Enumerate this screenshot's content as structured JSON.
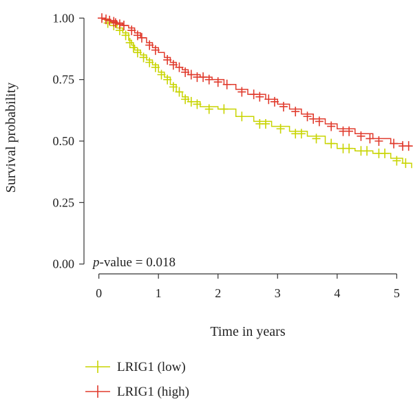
{
  "chart_data": {
    "type": "line",
    "step": true,
    "xlabel": "Time in years",
    "ylabel": "Survival probability",
    "xlim": [
      -0.25,
      5.25
    ],
    "ylim": [
      -0.04,
      1.04
    ],
    "xticks": [
      0,
      1,
      2,
      3,
      4,
      5
    ],
    "yticks": [
      0.0,
      0.25,
      0.5,
      0.75,
      1.0
    ],
    "ytick_labels": [
      "0.00",
      "0.25",
      "0.50",
      "0.75",
      "1.00"
    ],
    "annotation": {
      "italic": "p",
      "rest": "-value = 0.018"
    },
    "grid": false,
    "legend_position": "bottom-left",
    "series": [
      {
        "name": "LRIG1 (low)",
        "color": "#c8d400",
        "points": [
          [
            0,
            1.0
          ],
          [
            0.1,
            0.99
          ],
          [
            0.2,
            0.98
          ],
          [
            0.3,
            0.96
          ],
          [
            0.4,
            0.94
          ],
          [
            0.5,
            0.91
          ],
          [
            0.55,
            0.89
          ],
          [
            0.6,
            0.87
          ],
          [
            0.7,
            0.85
          ],
          [
            0.8,
            0.83
          ],
          [
            0.9,
            0.81
          ],
          [
            1.0,
            0.78
          ],
          [
            1.1,
            0.76
          ],
          [
            1.2,
            0.73
          ],
          [
            1.3,
            0.7
          ],
          [
            1.4,
            0.68
          ],
          [
            1.5,
            0.66
          ],
          [
            1.7,
            0.64
          ],
          [
            2.0,
            0.63
          ],
          [
            2.3,
            0.6
          ],
          [
            2.6,
            0.58
          ],
          [
            2.9,
            0.56
          ],
          [
            3.2,
            0.54
          ],
          [
            3.5,
            0.52
          ],
          [
            3.8,
            0.49
          ],
          [
            4.0,
            0.47
          ],
          [
            4.3,
            0.46
          ],
          [
            4.6,
            0.45
          ],
          [
            4.9,
            0.43
          ],
          [
            5.1,
            0.41
          ],
          [
            5.25,
            0.39
          ]
        ],
        "censors": [
          [
            0.15,
            0.98
          ],
          [
            0.25,
            0.97
          ],
          [
            0.35,
            0.95
          ],
          [
            0.45,
            0.93
          ],
          [
            0.52,
            0.9
          ],
          [
            0.58,
            0.88
          ],
          [
            0.65,
            0.86
          ],
          [
            0.75,
            0.84
          ],
          [
            0.85,
            0.82
          ],
          [
            0.95,
            0.8
          ],
          [
            1.05,
            0.77
          ],
          [
            1.15,
            0.75
          ],
          [
            1.25,
            0.72
          ],
          [
            1.35,
            0.7
          ],
          [
            1.45,
            0.67
          ],
          [
            1.55,
            0.66
          ],
          [
            1.65,
            0.65
          ],
          [
            1.85,
            0.63
          ],
          [
            2.1,
            0.63
          ],
          [
            2.4,
            0.6
          ],
          [
            2.7,
            0.57
          ],
          [
            2.8,
            0.57
          ],
          [
            3.05,
            0.55
          ],
          [
            3.3,
            0.53
          ],
          [
            3.4,
            0.53
          ],
          [
            3.65,
            0.51
          ],
          [
            3.9,
            0.49
          ],
          [
            4.1,
            0.47
          ],
          [
            4.2,
            0.47
          ],
          [
            4.4,
            0.46
          ],
          [
            4.5,
            0.46
          ],
          [
            4.7,
            0.45
          ],
          [
            4.8,
            0.45
          ],
          [
            5.0,
            0.42
          ],
          [
            5.15,
            0.41
          ]
        ]
      },
      {
        "name": "LRIG1 (high)",
        "color": "#e03a2c",
        "points": [
          [
            0,
            1.0
          ],
          [
            0.1,
            0.995
          ],
          [
            0.2,
            0.99
          ],
          [
            0.3,
            0.98
          ],
          [
            0.4,
            0.97
          ],
          [
            0.5,
            0.96
          ],
          [
            0.6,
            0.94
          ],
          [
            0.7,
            0.92
          ],
          [
            0.8,
            0.9
          ],
          [
            0.9,
            0.88
          ],
          [
            1.0,
            0.86
          ],
          [
            1.1,
            0.84
          ],
          [
            1.2,
            0.82
          ],
          [
            1.3,
            0.8
          ],
          [
            1.4,
            0.79
          ],
          [
            1.5,
            0.77
          ],
          [
            1.7,
            0.76
          ],
          [
            1.9,
            0.75
          ],
          [
            2.1,
            0.73
          ],
          [
            2.3,
            0.71
          ],
          [
            2.5,
            0.69
          ],
          [
            2.8,
            0.67
          ],
          [
            3.0,
            0.65
          ],
          [
            3.2,
            0.63
          ],
          [
            3.4,
            0.61
          ],
          [
            3.6,
            0.59
          ],
          [
            3.8,
            0.57
          ],
          [
            4.0,
            0.55
          ],
          [
            4.3,
            0.53
          ],
          [
            4.6,
            0.51
          ],
          [
            4.9,
            0.49
          ],
          [
            5.1,
            0.48
          ],
          [
            5.25,
            0.48
          ]
        ],
        "censors": [
          [
            0.05,
            1.0
          ],
          [
            0.12,
            0.995
          ],
          [
            0.18,
            0.99
          ],
          [
            0.25,
            0.985
          ],
          [
            0.28,
            0.98
          ],
          [
            0.35,
            0.975
          ],
          [
            0.42,
            0.97
          ],
          [
            0.55,
            0.95
          ],
          [
            0.65,
            0.93
          ],
          [
            0.72,
            0.92
          ],
          [
            0.85,
            0.89
          ],
          [
            0.95,
            0.87
          ],
          [
            1.15,
            0.83
          ],
          [
            1.25,
            0.81
          ],
          [
            1.35,
            0.8
          ],
          [
            1.45,
            0.78
          ],
          [
            1.55,
            0.77
          ],
          [
            1.65,
            0.76
          ],
          [
            1.75,
            0.76
          ],
          [
            1.85,
            0.75
          ],
          [
            2.0,
            0.74
          ],
          [
            2.15,
            0.73
          ],
          [
            2.4,
            0.7
          ],
          [
            2.6,
            0.69
          ],
          [
            2.7,
            0.68
          ],
          [
            2.85,
            0.67
          ],
          [
            2.95,
            0.66
          ],
          [
            3.1,
            0.64
          ],
          [
            3.3,
            0.62
          ],
          [
            3.5,
            0.6
          ],
          [
            3.6,
            0.59
          ],
          [
            3.7,
            0.58
          ],
          [
            3.9,
            0.56
          ],
          [
            4.1,
            0.54
          ],
          [
            4.2,
            0.54
          ],
          [
            4.4,
            0.52
          ],
          [
            4.55,
            0.51
          ],
          [
            4.7,
            0.5
          ],
          [
            4.95,
            0.49
          ],
          [
            5.1,
            0.48
          ],
          [
            5.2,
            0.48
          ]
        ]
      }
    ]
  }
}
